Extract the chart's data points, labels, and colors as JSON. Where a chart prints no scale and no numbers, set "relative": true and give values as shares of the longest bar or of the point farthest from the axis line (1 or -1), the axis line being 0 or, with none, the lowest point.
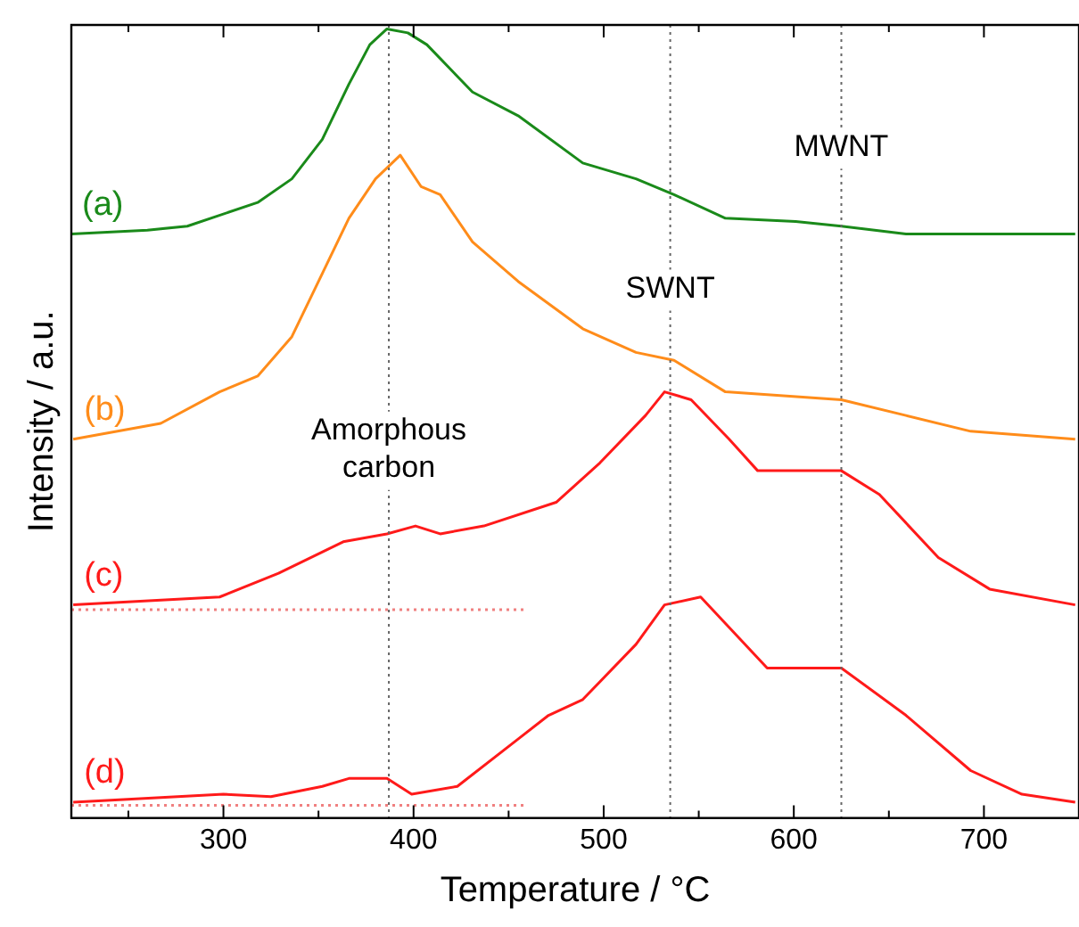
{
  "chart_data": {
    "type": "line",
    "relative": true,
    "xlabel": "Temperature / °C",
    "ylabel": "Intensity / a.u.",
    "xlim": [
      220,
      750
    ],
    "xticks": [
      {
        "value": 250,
        "label": null
      },
      300,
      {
        "value": 350,
        "label": null
      },
      400,
      {
        "value": 450,
        "label": null
      },
      500,
      {
        "value": 550,
        "label": null
      },
      600,
      {
        "value": 650,
        "label": null
      },
      700
    ],
    "grid": false,
    "legend": false,
    "marker": "none",
    "line_style": "solid",
    "series": [
      {
        "name": "(a)",
        "color": "#1a8a1a",
        "x": [
          220,
          260,
          281,
          318,
          336,
          352,
          366,
          377,
          386,
          397,
          407,
          431,
          455,
          489,
          517,
          537,
          564,
          601,
          625,
          659,
          748
        ],
        "values": [
          0.74,
          0.745,
          0.75,
          0.78,
          0.81,
          0.86,
          0.93,
          0.98,
          1,
          0.995,
          0.98,
          0.92,
          0.89,
          0.83,
          0.81,
          0.79,
          0.76,
          0.756,
          0.75,
          0.74,
          0.74
        ]
      },
      {
        "name": "(b)",
        "color": "#ff8c1a",
        "x": [
          221,
          267,
          298,
          318,
          336,
          352,
          366,
          380,
          393,
          404,
          414,
          431,
          455,
          489,
          517,
          537,
          564,
          625,
          659,
          693,
          748
        ],
        "values": [
          0.48,
          0.5,
          0.54,
          0.56,
          0.61,
          0.69,
          0.76,
          0.81,
          0.84,
          0.8,
          0.79,
          0.73,
          0.68,
          0.62,
          0.59,
          0.58,
          0.54,
          0.53,
          0.51,
          0.49,
          0.48
        ]
      },
      {
        "name": "(c)",
        "color": "#ff1a1a",
        "x": [
          221,
          298,
          329,
          363,
          386,
          401,
          414,
          437,
          475,
          498,
          522,
          532,
          546,
          566,
          581,
          625,
          645,
          676,
          703,
          748
        ],
        "values": [
          0.27,
          0.28,
          0.31,
          0.35,
          0.36,
          0.37,
          0.36,
          0.37,
          0.4,
          0.45,
          0.51,
          0.54,
          0.53,
          0.48,
          0.44,
          0.44,
          0.41,
          0.33,
          0.29,
          0.27
        ]
      },
      {
        "name": "(d)",
        "color": "#ff1a1a",
        "x": [
          221,
          300,
          325,
          352,
          366,
          386,
          399,
          423,
          455,
          471,
          489,
          517,
          532,
          551,
          586,
          625,
          659,
          693,
          720,
          748
        ],
        "values": [
          0.02,
          0.03,
          0.027,
          0.04,
          0.05,
          0.05,
          0.03,
          0.04,
          0.1,
          0.13,
          0.15,
          0.22,
          0.27,
          0.28,
          0.19,
          0.19,
          0.13,
          0.06,
          0.03,
          0.02
        ]
      },
      {
        "color": "#f08080",
        "line_style": "dotted",
        "x": [
          220,
          458
        ],
        "values": [
          0.264,
          0.264
        ]
      },
      {
        "color": "#f08080",
        "line_style": "dotted",
        "x": [
          220,
          458
        ],
        "values": [
          0.016,
          0.016
        ]
      }
    ],
    "ref_lines": [
      {
        "axis": "x",
        "value": 387,
        "color": "#666666",
        "line_style": "dotted"
      },
      {
        "axis": "x",
        "value": 535,
        "color": "#666666",
        "line_style": "dotted"
      },
      {
        "axis": "x",
        "value": 625,
        "color": "#666666",
        "line_style": "dotted"
      }
    ],
    "annotations": [
      {
        "text": "Amorphous carbon",
        "x": 387,
        "y": 0.49
      },
      {
        "text": "SWNT",
        "x": 535,
        "y": 0.67
      },
      {
        "text": "MWNT",
        "x": 625,
        "y": 0.85
      }
    ]
  }
}
